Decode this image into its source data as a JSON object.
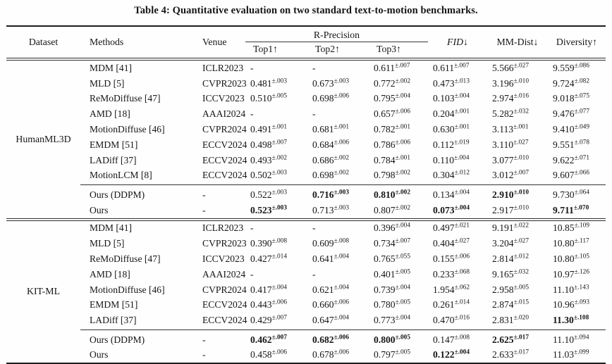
{
  "title": "Table 4: Quantitative evaluation on two standard text-to-motion benchmarks.",
  "header": {
    "dataset": "Dataset",
    "methods": "Methods",
    "venue": "Venue",
    "r_precision": "R-Precision",
    "top1": "Top1↑",
    "top2": "Top2↑",
    "top3": "Top3↑",
    "fid": "FID↓",
    "mm_dist": "MM-Dist↓",
    "diversity": "Diversity↑"
  },
  "column_keys": [
    "top1",
    "top2",
    "top3",
    "fid",
    "mm_dist",
    "diversity"
  ],
  "sections": [
    {
      "dataset": "HumanML3D",
      "rows": [
        {
          "method": "MDM [41]",
          "venue": "ICLR2023",
          "values": [
            {
              "v": "-",
              "e": "",
              "b": false
            },
            {
              "v": "-",
              "e": "",
              "b": false
            },
            {
              "v": "0.611",
              "e": "±.007",
              "b": false
            },
            {
              "v": "0.611",
              "e": "±.007",
              "b": false
            },
            {
              "v": "5.566",
              "e": "±.027",
              "b": false
            },
            {
              "v": "9.559",
              "e": "±.086",
              "b": false
            }
          ]
        },
        {
          "method": "MLD [5]",
          "venue": "CVPR2023",
          "values": [
            {
              "v": "0.481",
              "e": "±.003",
              "b": false
            },
            {
              "v": "0.673",
              "e": "±.003",
              "b": false
            },
            {
              "v": "0.772",
              "e": "±.002",
              "b": false
            },
            {
              "v": "0.473",
              "e": "±.013",
              "b": false
            },
            {
              "v": "3.196",
              "e": "±.010",
              "b": false
            },
            {
              "v": "9.724",
              "e": "±.082",
              "b": false
            }
          ]
        },
        {
          "method": "ReMoDiffuse [47]",
          "venue": "ICCV2023",
          "values": [
            {
              "v": "0.510",
              "e": "±.005",
              "b": false
            },
            {
              "v": "0.698",
              "e": "±.006",
              "b": false
            },
            {
              "v": "0.795",
              "e": "±.004",
              "b": false
            },
            {
              "v": "0.103",
              "e": "±.004",
              "b": false
            },
            {
              "v": "2.974",
              "e": "±.016",
              "b": false
            },
            {
              "v": "9.018",
              "e": "±.075",
              "b": false
            }
          ]
        },
        {
          "method": "AMD [18]",
          "venue": "AAAI2024",
          "values": [
            {
              "v": "-",
              "e": "",
              "b": false
            },
            {
              "v": "-",
              "e": "",
              "b": false
            },
            {
              "v": "0.657",
              "e": "±.006",
              "b": false
            },
            {
              "v": "0.204",
              "e": "±.001",
              "b": false
            },
            {
              "v": "5.282",
              "e": "±.032",
              "b": false
            },
            {
              "v": "9.476",
              "e": "±.077",
              "b": false
            }
          ]
        },
        {
          "method": "MotionDiffuse [46]",
          "venue": "CVPR2024",
          "values": [
            {
              "v": "0.491",
              "e": "±.001",
              "b": false
            },
            {
              "v": "0.681",
              "e": "±.001",
              "b": false
            },
            {
              "v": "0.782",
              "e": "±.001",
              "b": false
            },
            {
              "v": "0.630",
              "e": "±.001",
              "b": false
            },
            {
              "v": "3.113",
              "e": "±.001",
              "b": false
            },
            {
              "v": "9.410",
              "e": "±.049",
              "b": false
            }
          ]
        },
        {
          "method": "EMDM [51]",
          "venue": "ECCV2024",
          "values": [
            {
              "v": "0.498",
              "e": "±.007",
              "b": false
            },
            {
              "v": "0.684",
              "e": "±.006",
              "b": false
            },
            {
              "v": "0.786",
              "e": "±.006",
              "b": false
            },
            {
              "v": "0.112",
              "e": "±.019",
              "b": false
            },
            {
              "v": "3.110",
              "e": "±.027",
              "b": false
            },
            {
              "v": "9.551",
              "e": "±.078",
              "b": false
            }
          ]
        },
        {
          "method": "LADiff [37]",
          "venue": "ECCV2024",
          "values": [
            {
              "v": "0.493",
              "e": "±.002",
              "b": false
            },
            {
              "v": "0.686",
              "e": "±.002",
              "b": false
            },
            {
              "v": "0.784",
              "e": "±.001",
              "b": false
            },
            {
              "v": "0.110",
              "e": "±.004",
              "b": false
            },
            {
              "v": "3.077",
              "e": "±.010",
              "b": false
            },
            {
              "v": "9.622",
              "e": "±.071",
              "b": false
            }
          ]
        },
        {
          "method": "MotionLCM [8]",
          "venue": "ECCV2024",
          "values": [
            {
              "v": "0.502",
              "e": "±.003",
              "b": false
            },
            {
              "v": "0.698",
              "e": "±.002",
              "b": false
            },
            {
              "v": "0.798",
              "e": "±.002",
              "b": false
            },
            {
              "v": "0.304",
              "e": "±.012",
              "b": false
            },
            {
              "v": "3.012",
              "e": "±.007",
              "b": false
            },
            {
              "v": "9.607",
              "e": "±.066",
              "b": false
            }
          ]
        }
      ],
      "ours_rows": [
        {
          "method": "Ours (DDPM)",
          "venue": "-",
          "values": [
            {
              "v": "0.522",
              "e": "±.003",
              "b": false
            },
            {
              "v": "0.716",
              "e": "±.003",
              "b": true
            },
            {
              "v": "0.810",
              "e": "±.002",
              "b": true
            },
            {
              "v": "0.134",
              "e": "±.004",
              "b": false
            },
            {
              "v": "2.910",
              "e": "±.010",
              "b": true
            },
            {
              "v": "9.730",
              "e": "±.064",
              "b": false
            }
          ]
        },
        {
          "method": "Ours",
          "venue": "-",
          "values": [
            {
              "v": "0.523",
              "e": "±.003",
              "b": true
            },
            {
              "v": "0.713",
              "e": "±.003",
              "b": false
            },
            {
              "v": "0.807",
              "e": "±.002",
              "b": false
            },
            {
              "v": "0.073",
              "e": "±.004",
              "b": true
            },
            {
              "v": "2.917",
              "e": "±.010",
              "b": false
            },
            {
              "v": "9.711",
              "e": "±.070",
              "b": true
            }
          ]
        }
      ]
    },
    {
      "dataset": "KIT-ML",
      "rows": [
        {
          "method": "MDM [41]",
          "venue": "ICLR2023",
          "values": [
            {
              "v": "-",
              "e": "",
              "b": false
            },
            {
              "v": "-",
              "e": "",
              "b": false
            },
            {
              "v": "0.396",
              "e": "±.004",
              "b": false
            },
            {
              "v": "0.497",
              "e": "±.021",
              "b": false
            },
            {
              "v": "9.191",
              "e": "±.022",
              "b": false
            },
            {
              "v": "10.85",
              "e": "±.109",
              "b": false
            }
          ]
        },
        {
          "method": "MLD [5]",
          "venue": "CVPR2023",
          "values": [
            {
              "v": "0.390",
              "e": "±.008",
              "b": false
            },
            {
              "v": "0.609",
              "e": "±.008",
              "b": false
            },
            {
              "v": "0.734",
              "e": "±.007",
              "b": false
            },
            {
              "v": "0.404",
              "e": "±.027",
              "b": false
            },
            {
              "v": "3.204",
              "e": "±.027",
              "b": false
            },
            {
              "v": "10.80",
              "e": "±.117",
              "b": false
            }
          ]
        },
        {
          "method": "ReMoDiffuse [47]",
          "venue": "ICCV2023",
          "values": [
            {
              "v": "0.427",
              "e": "±.014",
              "b": false
            },
            {
              "v": "0.641",
              "e": "±.004",
              "b": false
            },
            {
              "v": "0.765",
              "e": "±.055",
              "b": false
            },
            {
              "v": "0.155",
              "e": "±.006",
              "b": false
            },
            {
              "v": "2.814",
              "e": "±.012",
              "b": false
            },
            {
              "v": "10.80",
              "e": "±.105",
              "b": false
            }
          ]
        },
        {
          "method": "AMD [18]",
          "venue": "AAAI2024",
          "values": [
            {
              "v": "-",
              "e": "",
              "b": false
            },
            {
              "v": "-",
              "e": "",
              "b": false
            },
            {
              "v": "0.401",
              "e": "±.005",
              "b": false
            },
            {
              "v": "0.233",
              "e": "±.068",
              "b": false
            },
            {
              "v": "9.165",
              "e": "±.032",
              "b": false
            },
            {
              "v": "10.97",
              "e": "±.126",
              "b": false
            }
          ]
        },
        {
          "method": "MotionDiffuse [46]",
          "venue": "CVPR2024",
          "values": [
            {
              "v": "0.417",
              "e": "±.004",
              "b": false
            },
            {
              "v": "0.621",
              "e": "±.004",
              "b": false
            },
            {
              "v": "0.739",
              "e": "±.004",
              "b": false
            },
            {
              "v": "1.954",
              "e": "±.062",
              "b": false
            },
            {
              "v": "2.958",
              "e": "±.005",
              "b": false
            },
            {
              "v": "11.10",
              "e": "±.143",
              "b": false
            }
          ]
        },
        {
          "method": "EMDM [51]",
          "venue": "ECCV2024",
          "values": [
            {
              "v": "0.443",
              "e": "±.006",
              "b": false
            },
            {
              "v": "0.660",
              "e": "±.006",
              "b": false
            },
            {
              "v": "0.780",
              "e": "±.005",
              "b": false
            },
            {
              "v": "0.261",
              "e": "±.014",
              "b": false
            },
            {
              "v": "2.874",
              "e": "±.015",
              "b": false
            },
            {
              "v": "10.96",
              "e": "±.093",
              "b": false
            }
          ]
        },
        {
          "method": "LADiff [37]",
          "venue": "ECCV2024",
          "values": [
            {
              "v": "0.429",
              "e": "±.007",
              "b": false
            },
            {
              "v": "0.647",
              "e": "±.004",
              "b": false
            },
            {
              "v": "0.773",
              "e": "±.004",
              "b": false
            },
            {
              "v": "0.470",
              "e": "±.016",
              "b": false
            },
            {
              "v": "2.831",
              "e": "±.020",
              "b": false
            },
            {
              "v": "11.30",
              "e": "±.108",
              "b": true
            }
          ]
        }
      ],
      "ours_rows": [
        {
          "method": "Ours (DDPM)",
          "venue": "-",
          "values": [
            {
              "v": "0.462",
              "e": "±.007",
              "b": true
            },
            {
              "v": "0.682",
              "e": "±.006",
              "b": true
            },
            {
              "v": "0.800",
              "e": "±.005",
              "b": true
            },
            {
              "v": "0.147",
              "e": "±.008",
              "b": false
            },
            {
              "v": "2.625",
              "e": "±.017",
              "b": true
            },
            {
              "v": "11.10",
              "e": "±.094",
              "b": false
            }
          ]
        },
        {
          "method": "Ours",
          "venue": "-",
          "values": [
            {
              "v": "0.458",
              "e": "±.006",
              "b": false
            },
            {
              "v": "0.678",
              "e": "±.006",
              "b": false
            },
            {
              "v": "0.797",
              "e": "±.005",
              "b": false
            },
            {
              "v": "0.122",
              "e": "±.004",
              "b": true
            },
            {
              "v": "2.633",
              "e": "±.017",
              "b": false
            },
            {
              "v": "11.03",
              "e": "±.099",
              "b": false
            }
          ]
        }
      ]
    }
  ]
}
